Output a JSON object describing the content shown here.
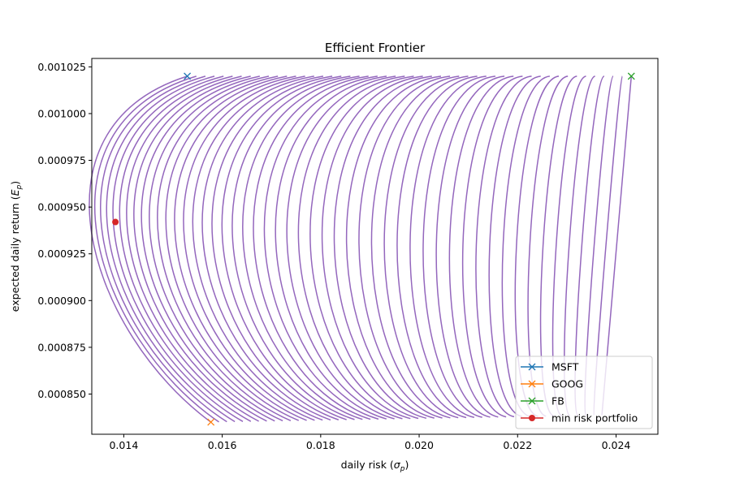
{
  "chart_data": {
    "type": "line",
    "title": "Efficient Frontier",
    "xlabel_main": "daily risk (",
    "xlabel_sym": "σ",
    "xlabel_sub": "p",
    "xlabel_end": ")",
    "ylabel_main": "expected daily return (",
    "ylabel_sym": "E",
    "ylabel_sub": "p",
    "ylabel_end": ")",
    "xlim": [
      0.01335,
      0.02485
    ],
    "ylim": [
      0.0008285,
      0.0010295
    ],
    "xticks": [
      0.014,
      0.016,
      0.018,
      0.02,
      0.022,
      0.024
    ],
    "xtick_labels": [
      "0.014",
      "0.016",
      "0.018",
      "0.020",
      "0.022",
      "0.024"
    ],
    "yticks": [
      0.00085,
      0.000875,
      0.0009,
      0.000925,
      0.00095,
      0.000975,
      0.001,
      0.001025
    ],
    "ytick_labels": [
      "0.000850",
      "0.000875",
      "0.000900",
      "0.000925",
      "0.000950",
      "0.000975",
      "0.001000",
      "0.001025"
    ],
    "grid": false,
    "legend_position": "lower-right",
    "assets": {
      "MSFT": {
        "sigma": 0.01529,
        "ret": 0.00102
      },
      "GOOG": {
        "sigma": 0.01577,
        "ret": 0.000835
      },
      "FB": {
        "sigma": 0.02431,
        "ret": 0.00102
      }
    },
    "min_risk_portfolio": {
      "sigma": 0.01383,
      "ret": 0.000942
    },
    "frontier_color": "#9467bd",
    "series": [
      {
        "name": "MSFT",
        "color": "#1f77b4",
        "marker": "x"
      },
      {
        "name": "GOOG",
        "color": "#ff7f0e",
        "marker": "x"
      },
      {
        "name": "FB",
        "color": "#2ca02c",
        "marker": "x"
      },
      {
        "name": "min risk portfolio",
        "color": "#d62728",
        "marker": "o"
      }
    ]
  }
}
